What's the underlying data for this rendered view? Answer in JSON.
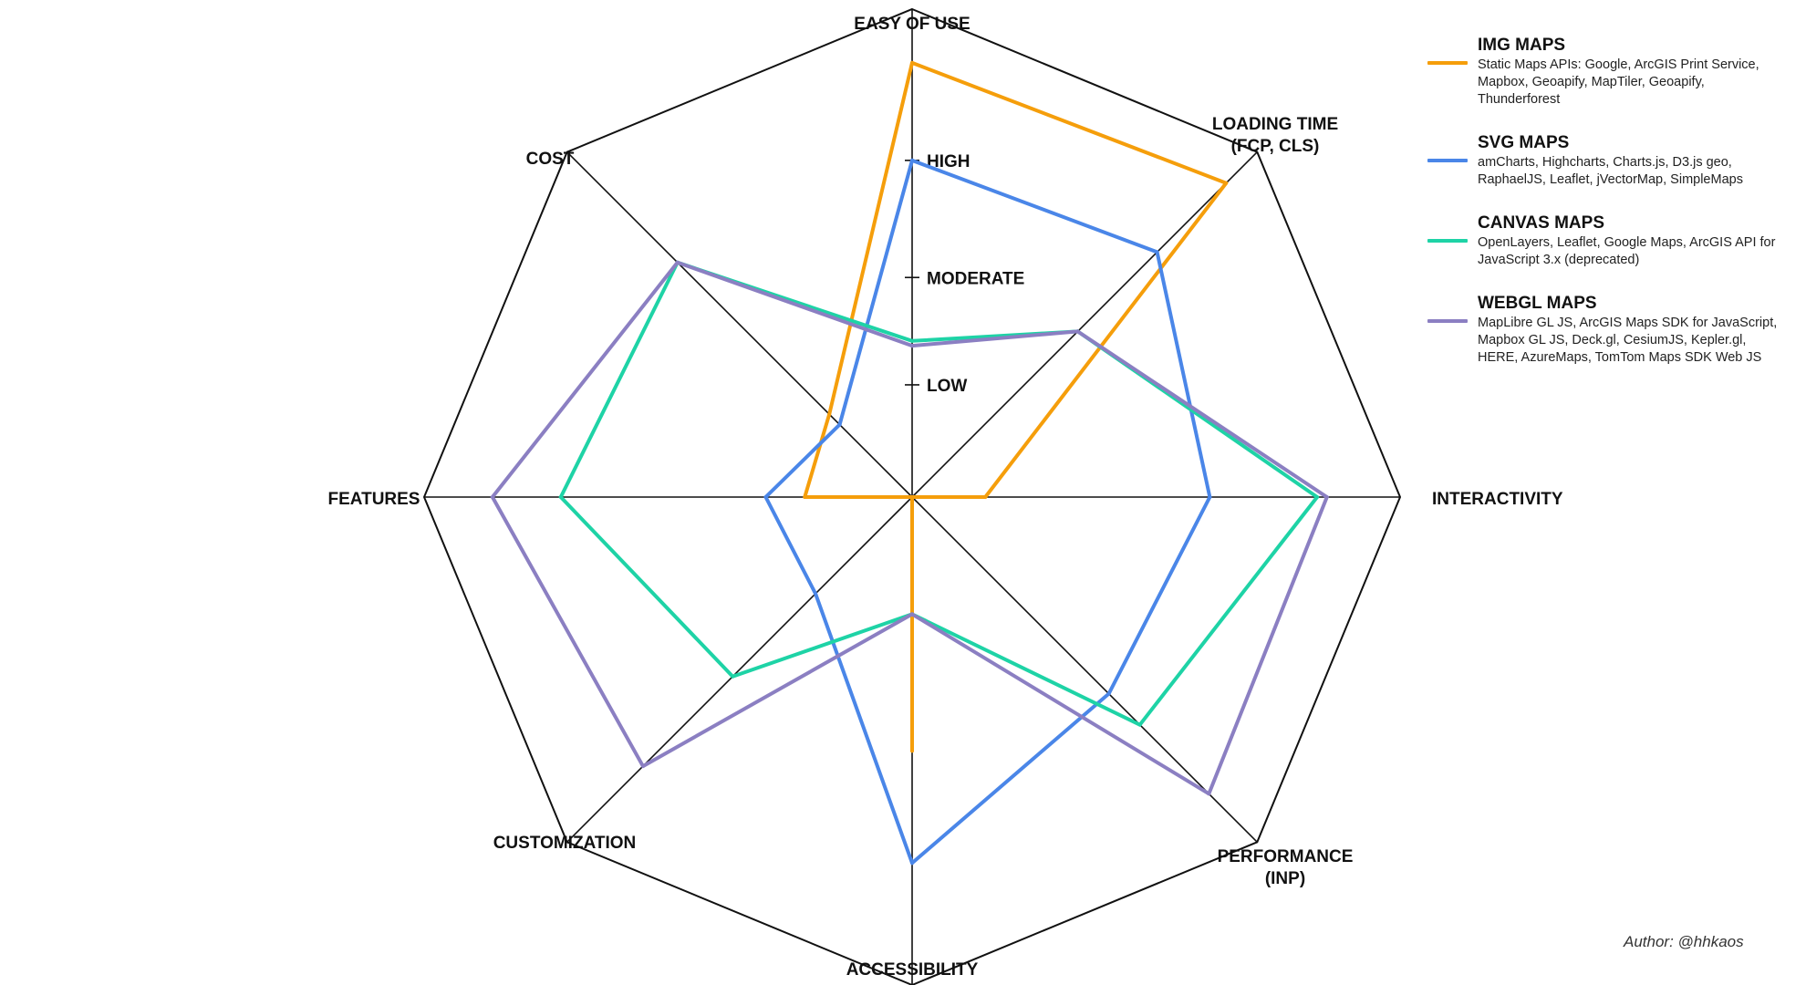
{
  "chart_data": {
    "type": "radar",
    "axes": [
      "EASY OF USE",
      "LOADING TIME\n(FCP, CLS)",
      "INTERACTIVITY",
      "PERFORMANCE\n(INP)",
      "ACCESSIBILITY",
      "CUSTOMIZATION",
      "FEATURES",
      "COST"
    ],
    "levels": [
      {
        "label": "LOW",
        "value": 0.23
      },
      {
        "label": "MODERATE",
        "value": 0.45
      },
      {
        "label": "HIGH",
        "value": 0.69
      }
    ],
    "rlim": [
      0,
      1
    ],
    "series": [
      {
        "name": "IMG MAPS",
        "description": "Static Maps APIs: Google, ArcGIS Print Service, Mapbox, Geoapify, MapTiler, Geoapify, Thunderforest",
        "color": "#F59E0B",
        "values": [
          0.89,
          0.91,
          0.15,
          0.0,
          0.52,
          0.0,
          0.22,
          0.24
        ],
        "dashed_segments": [
          [
            2,
            4
          ]
        ]
      },
      {
        "name": "SVG MAPS",
        "description": "amCharts, Highcharts, Charts.js, D3.js geo, RaphaelJS, Leaflet, jVectorMap, SimpleMaps",
        "color": "#4A86E8",
        "values": [
          0.69,
          0.71,
          0.61,
          0.57,
          0.75,
          0.28,
          0.3,
          0.21
        ]
      },
      {
        "name": "CANVAS MAPS",
        "description": "OpenLayers, Leaflet, Google Maps, ArcGIS API for JavaScript 3.x (deprecated)",
        "color": "#1ED3A6",
        "values": [
          0.32,
          0.48,
          0.83,
          0.66,
          0.24,
          0.52,
          0.72,
          0.68
        ]
      },
      {
        "name": "WEBGL MAPS",
        "description": "MapLibre GL JS, ArcGIS Maps SDK for JavaScript, Mapbox GL JS, Deck.gl, CesiumJS, Kepler.gl, HERE, AzureMaps, TomTom Maps SDK Web JS",
        "color": "#8B7FC2",
        "values": [
          0.31,
          0.48,
          0.85,
          0.86,
          0.24,
          0.78,
          0.86,
          0.68
        ]
      }
    ],
    "legend_position": "top-right",
    "grid": true
  },
  "author": "Author: @hhkaos"
}
